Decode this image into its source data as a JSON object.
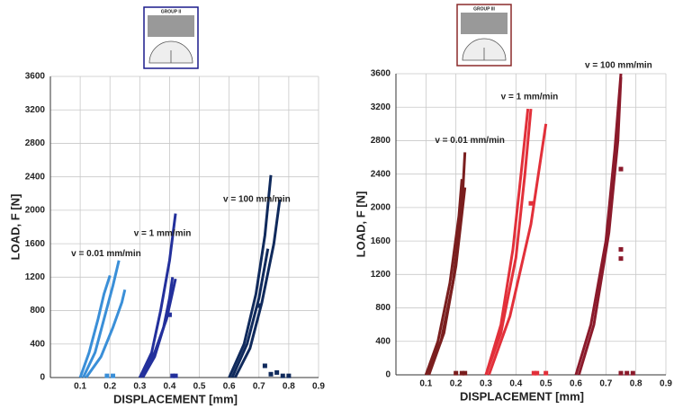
{
  "chart_data": [
    {
      "type": "line",
      "xlabel": "DISPLACEMENT [mm]",
      "ylabel": "LOAD, F [N]",
      "inset_label": "GROUP II",
      "inset_color": "#1a1a8c",
      "xlim": [
        0,
        0.9
      ],
      "ylim": [
        0,
        3600
      ],
      "xticks": [
        0.1,
        0.2,
        0.3,
        0.4,
        0.5,
        0.6,
        0.7,
        0.8,
        0.9
      ],
      "yticks": [
        0,
        400,
        800,
        1200,
        1600,
        2000,
        2400,
        2800,
        3200,
        3600
      ],
      "grid": true,
      "annotations": [
        {
          "text": "v = 0.01 mm/min",
          "x": 0.07,
          "y": 1480
        },
        {
          "text": "v = 1 mm/min",
          "x": 0.28,
          "y": 1720
        },
        {
          "text": "v = 100 mm/min",
          "x": 0.58,
          "y": 2130
        }
      ],
      "series": [
        {
          "style": "line",
          "color": "#3a8fd8",
          "x": [
            0.1,
            0.13,
            0.16,
            0.18,
            0.2
          ],
          "values": [
            0,
            300,
            700,
            1000,
            1220
          ]
        },
        {
          "style": "line",
          "color": "#3a8fd8",
          "x": [
            0.11,
            0.15,
            0.18,
            0.21,
            0.23
          ],
          "values": [
            0,
            300,
            700,
            1100,
            1400
          ]
        },
        {
          "style": "line",
          "color": "#3a8fd8",
          "x": [
            0.12,
            0.17,
            0.21,
            0.24,
            0.25
          ],
          "values": [
            0,
            250,
            600,
            900,
            1050
          ]
        },
        {
          "style": "line",
          "color": "#23309c",
          "x": [
            0.3,
            0.34,
            0.37,
            0.4,
            0.42
          ],
          "values": [
            0,
            300,
            800,
            1400,
            1960
          ]
        },
        {
          "style": "line",
          "color": "#23309c",
          "x": [
            0.31,
            0.35,
            0.38,
            0.4,
            0.41
          ],
          "values": [
            0,
            250,
            600,
            950,
            1200
          ]
        },
        {
          "style": "line",
          "color": "#23309c",
          "x": [
            0.3,
            0.35,
            0.39,
            0.42
          ],
          "values": [
            0,
            300,
            700,
            1180
          ]
        },
        {
          "style": "line",
          "color": "#102a5c",
          "x": [
            0.6,
            0.65,
            0.69,
            0.72,
            0.74
          ],
          "values": [
            0,
            400,
            1000,
            1700,
            2420
          ]
        },
        {
          "style": "line",
          "color": "#102a5c",
          "x": [
            0.62,
            0.67,
            0.71,
            0.75,
            0.77
          ],
          "values": [
            0,
            350,
            900,
            1600,
            2130
          ]
        },
        {
          "style": "line",
          "color": "#102a5c",
          "x": [
            0.61,
            0.66,
            0.7,
            0.73
          ],
          "values": [
            0,
            400,
            950,
            1540
          ]
        },
        {
          "style": "markers",
          "color": "#3a8fd8",
          "x": [
            0.19,
            0.21
          ],
          "values": [
            20,
            20
          ]
        },
        {
          "style": "markers",
          "color": "#23309c",
          "x": [
            0.4,
            0.41,
            0.42
          ],
          "values": [
            750,
            20,
            20
          ]
        },
        {
          "style": "markers",
          "color": "#102a5c",
          "x": [
            0.7,
            0.72,
            0.74,
            0.76,
            0.78,
            0.8
          ],
          "values": [
            860,
            140,
            40,
            60,
            20,
            20
          ]
        }
      ]
    },
    {
      "type": "line",
      "xlabel": "DISPLACEMENT [mm]",
      "ylabel": "LOAD, F [N]",
      "inset_label": "GROUP III",
      "inset_color": "#8b2a2a",
      "xlim": [
        0,
        0.9
      ],
      "ylim": [
        0,
        3600
      ],
      "xticks": [
        0.1,
        0.2,
        0.3,
        0.4,
        0.5,
        0.6,
        0.7,
        0.8,
        0.9
      ],
      "yticks": [
        0,
        400,
        800,
        1200,
        1600,
        2000,
        2400,
        2800,
        3200,
        3600
      ],
      "grid": true,
      "annotations": [
        {
          "text": "v = 0.01 mm/min",
          "x": 0.13,
          "y": 2800
        },
        {
          "text": "v = 1 mm/min",
          "x": 0.35,
          "y": 3320
        },
        {
          "text": "v = 100 mm/min",
          "x": 0.63,
          "y": 3700
        }
      ],
      "series": [
        {
          "style": "line",
          "color": "#7a1e1e",
          "x": [
            0.1,
            0.15,
            0.19,
            0.22,
            0.23
          ],
          "values": [
            0,
            400,
            1100,
            2000,
            2660
          ]
        },
        {
          "style": "line",
          "color": "#7a1e1e",
          "x": [
            0.1,
            0.14,
            0.18,
            0.21,
            0.22
          ],
          "values": [
            0,
            400,
            1100,
            1900,
            2340
          ]
        },
        {
          "style": "line",
          "color": "#7a1e1e",
          "x": [
            0.11,
            0.16,
            0.2,
            0.23
          ],
          "values": [
            0,
            500,
            1300,
            2240
          ]
        },
        {
          "style": "line",
          "color": "#e2303a",
          "x": [
            0.3,
            0.35,
            0.4,
            0.43,
            0.45
          ],
          "values": [
            0,
            500,
            1400,
            2400,
            3180
          ]
        },
        {
          "style": "line",
          "color": "#e2303a",
          "x": [
            0.3,
            0.35,
            0.39,
            0.42,
            0.44
          ],
          "values": [
            0,
            600,
            1500,
            2500,
            3180
          ]
        },
        {
          "style": "line",
          "color": "#e2303a",
          "x": [
            0.31,
            0.38,
            0.45,
            0.5
          ],
          "values": [
            0,
            700,
            1800,
            3000
          ]
        },
        {
          "style": "line",
          "color": "#8b1a2b",
          "x": [
            0.6,
            0.65,
            0.7,
            0.73,
            0.75
          ],
          "values": [
            0,
            600,
            1600,
            2700,
            3600
          ]
        },
        {
          "style": "line",
          "color": "#8b1a2b",
          "x": [
            0.61,
            0.66,
            0.71,
            0.74,
            0.75
          ],
          "values": [
            0,
            600,
            1700,
            2800,
            3560
          ]
        },
        {
          "style": "markers",
          "color": "#7a1e1e",
          "x": [
            0.2,
            0.22,
            0.23
          ],
          "values": [
            20,
            20,
            20
          ]
        },
        {
          "style": "markers",
          "color": "#e2303a",
          "x": [
            0.45,
            0.46,
            0.47,
            0.5
          ],
          "values": [
            2050,
            20,
            20,
            20
          ]
        },
        {
          "style": "markers",
          "color": "#8b1a2b",
          "x": [
            0.75,
            0.75,
            0.75,
            0.75,
            0.77,
            0.79
          ],
          "values": [
            2460,
            1500,
            1390,
            20,
            20,
            20
          ]
        }
      ]
    }
  ]
}
